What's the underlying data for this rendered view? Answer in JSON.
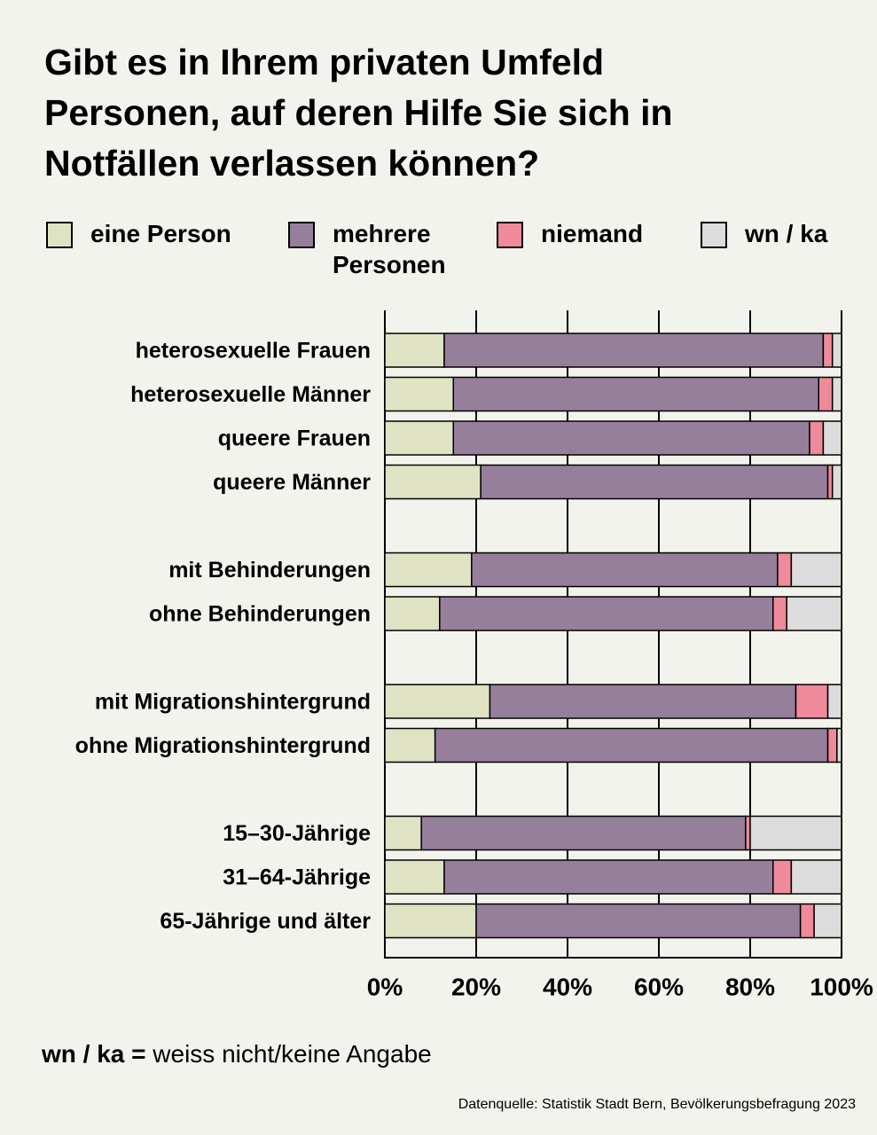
{
  "chart_data": {
    "type": "stacked-bar-horizontal",
    "title": "Gibt es in Ihrem privaten Umfeld Personen, auf deren Hilfe Sie sich in Notfällen verlassen können?",
    "categories": [
      "heterosexuelle Frauen",
      "heterosexuelle Männer",
      "queere Frauen",
      "queere Männer",
      null,
      "mit Behinderungen",
      "ohne Behinderungen",
      null,
      "mit Migrationshintergrund",
      "ohne Migrationshintergrund",
      null,
      "15–30-Jährige",
      "31–64-Jährige",
      "65-Jährige und älter"
    ],
    "series": [
      {
        "name": "eine Person",
        "color": "#dfe3c4",
        "values": [
          13,
          15,
          15,
          21,
          null,
          19,
          12,
          null,
          23,
          11,
          null,
          8,
          13,
          20
        ]
      },
      {
        "name": "mehrere Personen",
        "color": "#967f9b",
        "values": [
          83,
          80,
          78,
          76,
          null,
          67,
          73,
          null,
          67,
          86,
          null,
          71,
          72,
          71
        ]
      },
      {
        "name": "niemand",
        "color": "#ee8a99",
        "values": [
          2,
          3,
          3,
          1,
          null,
          3,
          3,
          null,
          7,
          2,
          null,
          1,
          4,
          3
        ]
      },
      {
        "name": "wn / ka",
        "color": "#dcdcdc",
        "values": [
          2,
          2,
          4,
          2,
          null,
          11,
          12,
          null,
          3,
          1,
          null,
          20,
          11,
          6
        ]
      }
    ],
    "xlim": [
      0,
      100
    ],
    "xticks": [
      {
        "value": 0,
        "label": "0%"
      },
      {
        "value": 20,
        "label": "20%"
      },
      {
        "value": 40,
        "label": "40%"
      },
      {
        "value": 60,
        "label": "60%"
      },
      {
        "value": 80,
        "label": "80%"
      },
      {
        "value": 100,
        "label": "100%"
      }
    ],
    "grid": true,
    "footnote": {
      "term": "wn / ka =",
      "definition": "weiss nicht/keine Angabe"
    },
    "source": "Datenquelle: Statistik Stadt Bern, Bevölkerungsbefragung 2023"
  }
}
